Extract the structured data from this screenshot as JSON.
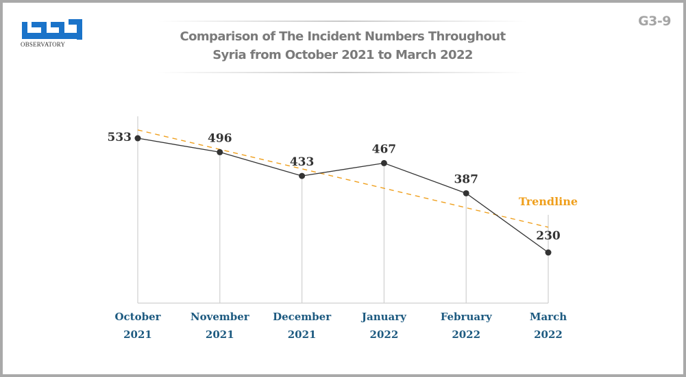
{
  "header": {
    "logo_text": "مرصد",
    "logo_subtext": "OBSERVATORY",
    "code": "G3-9"
  },
  "chart_data": {
    "type": "line",
    "title_lines": [
      "Comparison of The Incident Numbers Throughout",
      "Syria from October 2021 to March 2022"
    ],
    "categories": [
      {
        "month": "October",
        "year": "2021"
      },
      {
        "month": "November",
        "year": "2021"
      },
      {
        "month": "December",
        "year": "2021"
      },
      {
        "month": "January",
        "year": "2022"
      },
      {
        "month": "February",
        "year": "2022"
      },
      {
        "month": "March",
        "year": "2022"
      }
    ],
    "series": [
      {
        "name": "Incidents",
        "values": [
          533,
          496,
          433,
          467,
          387,
          230
        ],
        "color": "#333333"
      }
    ],
    "trendline": {
      "label": "Trendline",
      "start": 555,
      "end": 297,
      "color": "#ef9f1c"
    },
    "ylim": [
      -100,
      700
    ],
    "grid": "vertical drop lines",
    "xlabel": "",
    "ylabel": ""
  }
}
